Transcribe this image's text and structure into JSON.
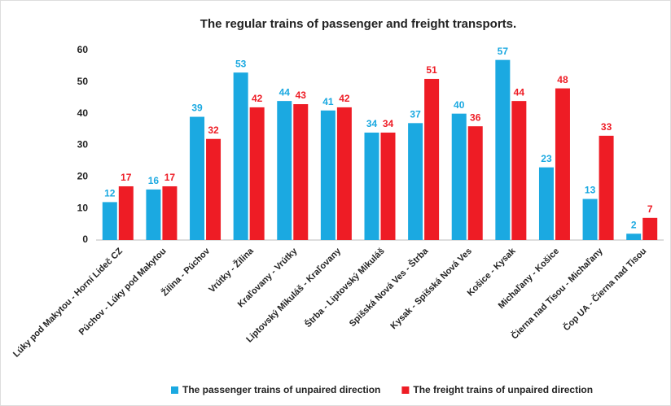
{
  "chart_data": {
    "type": "bar",
    "title": "The regular trains of passenger and freight transports.",
    "categories": [
      "Lúky pod Makytou - Horní Lideč CZ",
      "Púchov - Lúky pod Makytou",
      "Žilina - Púchov",
      "Vrútky - Žilina",
      "Kraľovany - Vrútky",
      "Liptovský Mikuláš - Kraľovany",
      "Štrba - Liptovský Mikuláš",
      "Spišská Nová Ves - Štrba",
      "Kysak - Spišská Nová Ves",
      "Košice - Kysak",
      "Michaľany - Košice",
      "Čierna nad Tisou - Michaľany",
      "Čop UA - Čierna nad Tisou"
    ],
    "series": [
      {
        "name": "The passenger trains of unpaired direction",
        "color": "#1ba9e1",
        "values": [
          12,
          16,
          39,
          53,
          44,
          41,
          34,
          37,
          40,
          57,
          23,
          13,
          2
        ]
      },
      {
        "name": "The freight trains of unpaired direction",
        "color": "#ee1c25",
        "values": [
          17,
          17,
          32,
          42,
          43,
          42,
          34,
          51,
          36,
          44,
          48,
          33,
          7
        ]
      }
    ],
    "ylim": [
      0,
      60
    ],
    "yticks": [
      0,
      10,
      20,
      30,
      40,
      50,
      60
    ],
    "grid": false,
    "legend": "bottom"
  }
}
